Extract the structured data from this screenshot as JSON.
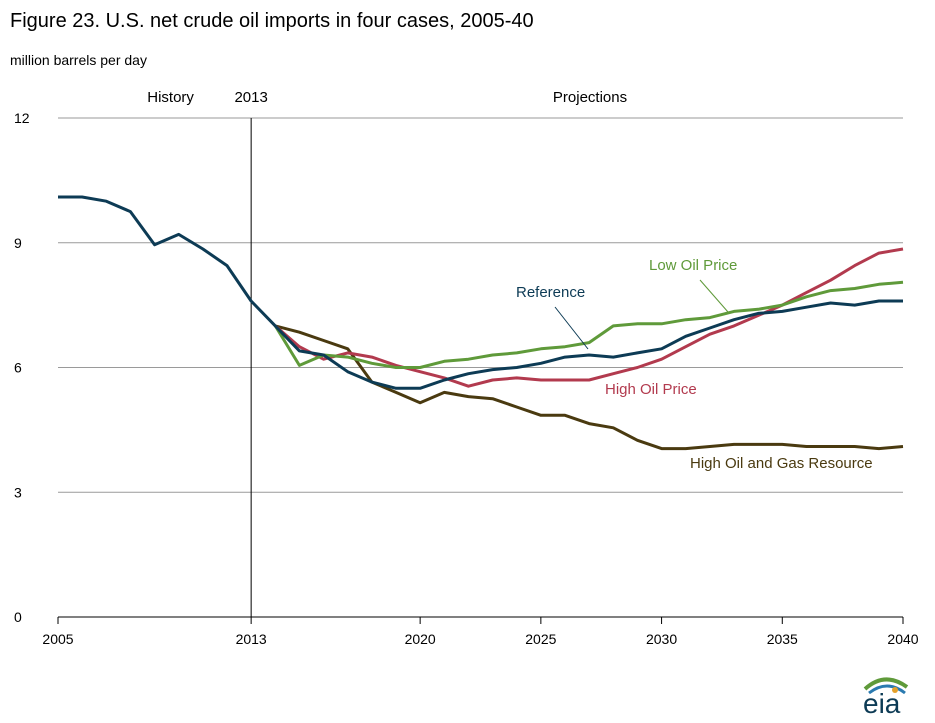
{
  "title": "Figure 23. U.S. net crude oil imports in four cases, 2005-40",
  "units": "million barrels per day",
  "region_labels": {
    "history": "History",
    "divider_year": "2013",
    "projections": "Projections"
  },
  "logo_text": "eia",
  "colors": {
    "reference": "#0d3b55",
    "low_oil_price": "#5f9a3a",
    "high_oil_price": "#b23a4e",
    "high_resource": "#4a3a10",
    "grid": "#9a9a9a"
  },
  "chart_data": {
    "type": "line",
    "title": "Figure 23. U.S. net crude oil imports in four cases, 2005-40",
    "ylabel": "million barrels per day",
    "xlabel": "",
    "xlim": [
      2005,
      2040
    ],
    "ylim": [
      0,
      12
    ],
    "yticks": [
      0,
      3,
      6,
      9,
      12
    ],
    "xticks": [
      2005,
      2013,
      2020,
      2025,
      2030,
      2035,
      2040
    ],
    "grid": "horizontal",
    "series": [
      {
        "name": "Reference",
        "color_key": "reference",
        "x": [
          2005,
          2006,
          2007,
          2008,
          2009,
          2010,
          2011,
          2012,
          2013,
          2014,
          2015,
          2016,
          2017,
          2018,
          2019,
          2020,
          2021,
          2022,
          2023,
          2024,
          2025,
          2026,
          2027,
          2028,
          2029,
          2030,
          2031,
          2032,
          2033,
          2034,
          2035,
          2036,
          2037,
          2038,
          2039,
          2040
        ],
        "y": [
          10.1,
          10.1,
          10.0,
          9.75,
          8.95,
          9.2,
          8.85,
          8.45,
          7.6,
          7.0,
          6.4,
          6.3,
          5.9,
          5.65,
          5.5,
          5.5,
          5.7,
          5.85,
          5.95,
          6.0,
          6.1,
          6.25,
          6.3,
          6.25,
          6.35,
          6.45,
          6.75,
          6.95,
          7.15,
          7.3,
          7.35,
          7.45,
          7.55,
          7.5,
          7.6,
          7.6
        ]
      },
      {
        "name": "Low Oil Price",
        "color_key": "low_oil_price",
        "x": [
          2014,
          2015,
          2016,
          2017,
          2018,
          2019,
          2020,
          2021,
          2022,
          2023,
          2024,
          2025,
          2026,
          2027,
          2028,
          2029,
          2030,
          2031,
          2032,
          2033,
          2034,
          2035,
          2036,
          2037,
          2038,
          2039,
          2040
        ],
        "y": [
          7.0,
          6.05,
          6.3,
          6.25,
          6.1,
          6.0,
          6.0,
          6.15,
          6.2,
          6.3,
          6.35,
          6.45,
          6.5,
          6.6,
          7.0,
          7.05,
          7.05,
          7.15,
          7.2,
          7.35,
          7.4,
          7.5,
          7.7,
          7.85,
          7.9,
          8.0,
          8.05
        ]
      },
      {
        "name": "High Oil Price",
        "color_key": "high_oil_price",
        "x": [
          2014,
          2015,
          2016,
          2017,
          2018,
          2019,
          2020,
          2021,
          2022,
          2023,
          2024,
          2025,
          2026,
          2027,
          2028,
          2029,
          2030,
          2031,
          2032,
          2033,
          2034,
          2035,
          2036,
          2037,
          2038,
          2039,
          2040
        ],
        "y": [
          7.0,
          6.5,
          6.2,
          6.35,
          6.25,
          6.05,
          5.9,
          5.75,
          5.55,
          5.7,
          5.75,
          5.7,
          5.7,
          5.7,
          5.85,
          6.0,
          6.2,
          6.5,
          6.8,
          7.0,
          7.25,
          7.5,
          7.8,
          8.1,
          8.45,
          8.75,
          8.85
        ]
      },
      {
        "name": "High Oil and Gas Resource",
        "color_key": "high_resource",
        "x": [
          2014,
          2015,
          2016,
          2017,
          2018,
          2019,
          2020,
          2021,
          2022,
          2023,
          2024,
          2025,
          2026,
          2027,
          2028,
          2029,
          2030,
          2031,
          2032,
          2033,
          2034,
          2035,
          2036,
          2037,
          2038,
          2039,
          2040
        ],
        "y": [
          7.0,
          6.85,
          6.65,
          6.45,
          5.65,
          5.4,
          5.15,
          5.4,
          5.3,
          5.25,
          5.05,
          4.85,
          4.85,
          4.65,
          4.55,
          4.25,
          4.05,
          4.05,
          4.1,
          4.15,
          4.15,
          4.15,
          4.1,
          4.1,
          4.1,
          4.05,
          4.1
        ]
      }
    ]
  }
}
